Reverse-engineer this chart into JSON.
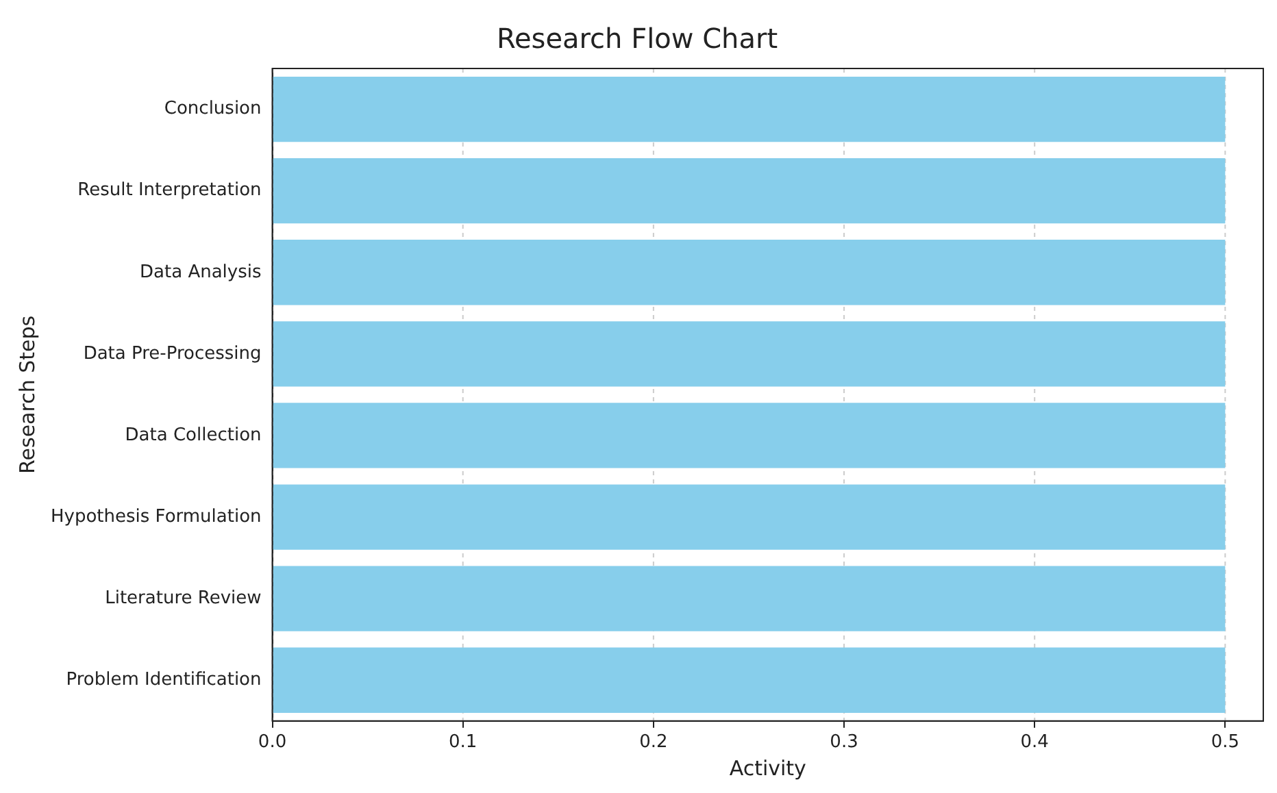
{
  "chart_data": {
    "type": "bar",
    "orientation": "horizontal",
    "title": "Research Flow Chart",
    "xlabel": "Activity",
    "ylabel": "Research Steps",
    "categories": [
      "Conclusion",
      "Result Interpretation",
      "Data Analysis",
      "Data Pre-Processing",
      "Data Collection",
      "Hypothesis Formulation",
      "Literature Review",
      "Problem Identification"
    ],
    "values": [
      0.5,
      0.5,
      0.5,
      0.5,
      0.5,
      0.5,
      0.5,
      0.5
    ],
    "color": "#87ceeb",
    "xlim": [
      0,
      0.52
    ],
    "xticks": [
      {
        "value": 0,
        "label": "0.0"
      },
      0.1,
      0.2,
      0.3,
      0.4,
      0.5
    ],
    "grid": "x"
  }
}
